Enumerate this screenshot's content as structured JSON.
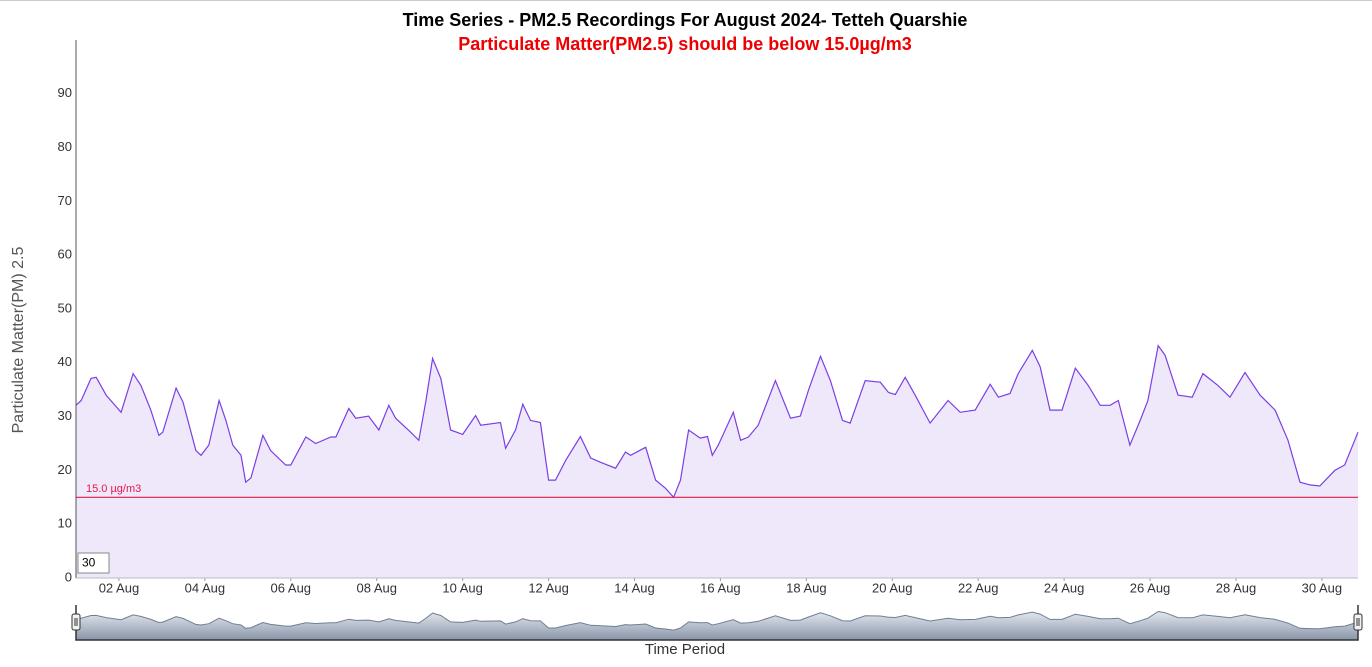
{
  "chart_data": {
    "type": "area",
    "title": "Time Series - PM2.5 Recordings For August 2024- Tetteh Quarshie",
    "subtitle": "Particulate Matter(PM2.5) should be below 15.0µg/m3",
    "y_label": "Particulate Matter(PM) 2.5",
    "x_label": "Time Period",
    "rolling_input": "30",
    "threshold": {
      "value": 15,
      "label": "15.0 µg/m3",
      "color": "#e8174a"
    },
    "xlim": [
      1,
      30.84
    ],
    "xticks": [
      {
        "value": 2,
        "label": "02 Aug"
      },
      {
        "value": 4,
        "label": "04 Aug"
      },
      {
        "value": 6,
        "label": "06 Aug"
      },
      {
        "value": 8,
        "label": "08 Aug"
      },
      {
        "value": 10,
        "label": "10 Aug"
      },
      {
        "value": 12,
        "label": "12 Aug"
      },
      {
        "value": 14,
        "label": "14 Aug"
      },
      {
        "value": 16,
        "label": "16 Aug"
      },
      {
        "value": 18,
        "label": "18 Aug"
      },
      {
        "value": 20,
        "label": "20 Aug"
      },
      {
        "value": 22,
        "label": "22 Aug"
      },
      {
        "value": 24,
        "label": "24 Aug"
      },
      {
        "value": 26,
        "label": "26 Aug"
      },
      {
        "value": 28,
        "label": "28 Aug"
      },
      {
        "value": 30,
        "label": "30 Aug"
      }
    ],
    "ylim": [
      0,
      100
    ],
    "yticks": [
      0,
      10,
      20,
      30,
      40,
      50,
      60,
      70,
      80,
      90
    ],
    "color": "#7b3fe4",
    "fill": "#efe8fb",
    "x": [
      1.0,
      1.12,
      1.35,
      1.47,
      1.7,
      2.05,
      2.33,
      2.51,
      2.74,
      2.93,
      3.02,
      3.33,
      3.49,
      3.79,
      3.91,
      4.09,
      4.33,
      4.49,
      4.65,
      4.84,
      4.95,
      5.07,
      5.35,
      5.53,
      5.88,
      6.0,
      6.35,
      6.58,
      6.93,
      7.05,
      7.35,
      7.51,
      7.81,
      8.05,
      8.28,
      8.44,
      8.79,
      8.98,
      9.14,
      9.3,
      9.49,
      9.72,
      10.0,
      10.3,
      10.42,
      10.88,
      11.0,
      11.23,
      11.4,
      11.58,
      11.81,
      12.0,
      12.16,
      12.4,
      12.74,
      12.98,
      13.21,
      13.56,
      13.79,
      13.91,
      14.26,
      14.49,
      14.72,
      14.91,
      15.07,
      15.26,
      15.53,
      15.7,
      15.81,
      15.95,
      16.3,
      16.47,
      16.65,
      16.88,
      17.28,
      17.63,
      17.86,
      18.05,
      18.33,
      18.56,
      18.84,
      19.02,
      19.37,
      19.72,
      19.91,
      20.07,
      20.3,
      20.53,
      20.88,
      21.3,
      21.58,
      21.93,
      22.28,
      22.47,
      22.74,
      22.93,
      23.26,
      23.44,
      23.67,
      23.95,
      24.26,
      24.56,
      24.84,
      25.07,
      25.26,
      25.53,
      25.77,
      25.95,
      26.19,
      26.35,
      26.65,
      26.98,
      27.23,
      27.58,
      27.86,
      28.21,
      28.56,
      28.91,
      29.21,
      29.49,
      29.72,
      29.95,
      30.3,
      30.53,
      30.84
    ],
    "values": [
      32.1,
      33.0,
      37.1,
      37.3,
      34.0,
      30.8,
      38.0,
      35.8,
      31.2,
      26.5,
      27.1,
      35.3,
      32.7,
      23.7,
      22.8,
      24.7,
      33.0,
      29.3,
      24.7,
      22.8,
      17.8,
      18.6,
      26.5,
      23.7,
      21.0,
      21.0,
      26.2,
      25.0,
      26.2,
      26.2,
      31.5,
      29.7,
      30.1,
      27.5,
      32.1,
      29.7,
      27.1,
      25.6,
      32.7,
      40.8,
      37.1,
      27.5,
      26.7,
      30.2,
      28.4,
      28.9,
      24.1,
      27.5,
      32.3,
      29.3,
      28.9,
      18.2,
      18.2,
      21.9,
      26.3,
      22.3,
      21.5,
      20.4,
      23.4,
      22.8,
      24.3,
      18.2,
      16.7,
      15.0,
      18.2,
      27.5,
      26.0,
      26.3,
      22.8,
      24.7,
      30.8,
      25.6,
      26.2,
      28.4,
      36.7,
      29.7,
      30.1,
      34.9,
      41.2,
      36.7,
      29.3,
      28.8,
      36.7,
      36.4,
      34.5,
      34.1,
      37.3,
      34.0,
      28.8,
      33.0,
      30.8,
      31.2,
      36.0,
      33.6,
      34.3,
      38.0,
      42.3,
      39.3,
      31.2,
      31.2,
      39.0,
      35.8,
      32.1,
      32.1,
      33.0,
      24.7,
      29.3,
      33.0,
      43.2,
      41.4,
      34.0,
      33.6,
      38.0,
      35.8,
      33.6,
      38.2,
      34.0,
      31.2,
      25.6,
      17.8,
      17.3,
      17.1,
      20.0,
      21.0,
      27.1
    ]
  }
}
